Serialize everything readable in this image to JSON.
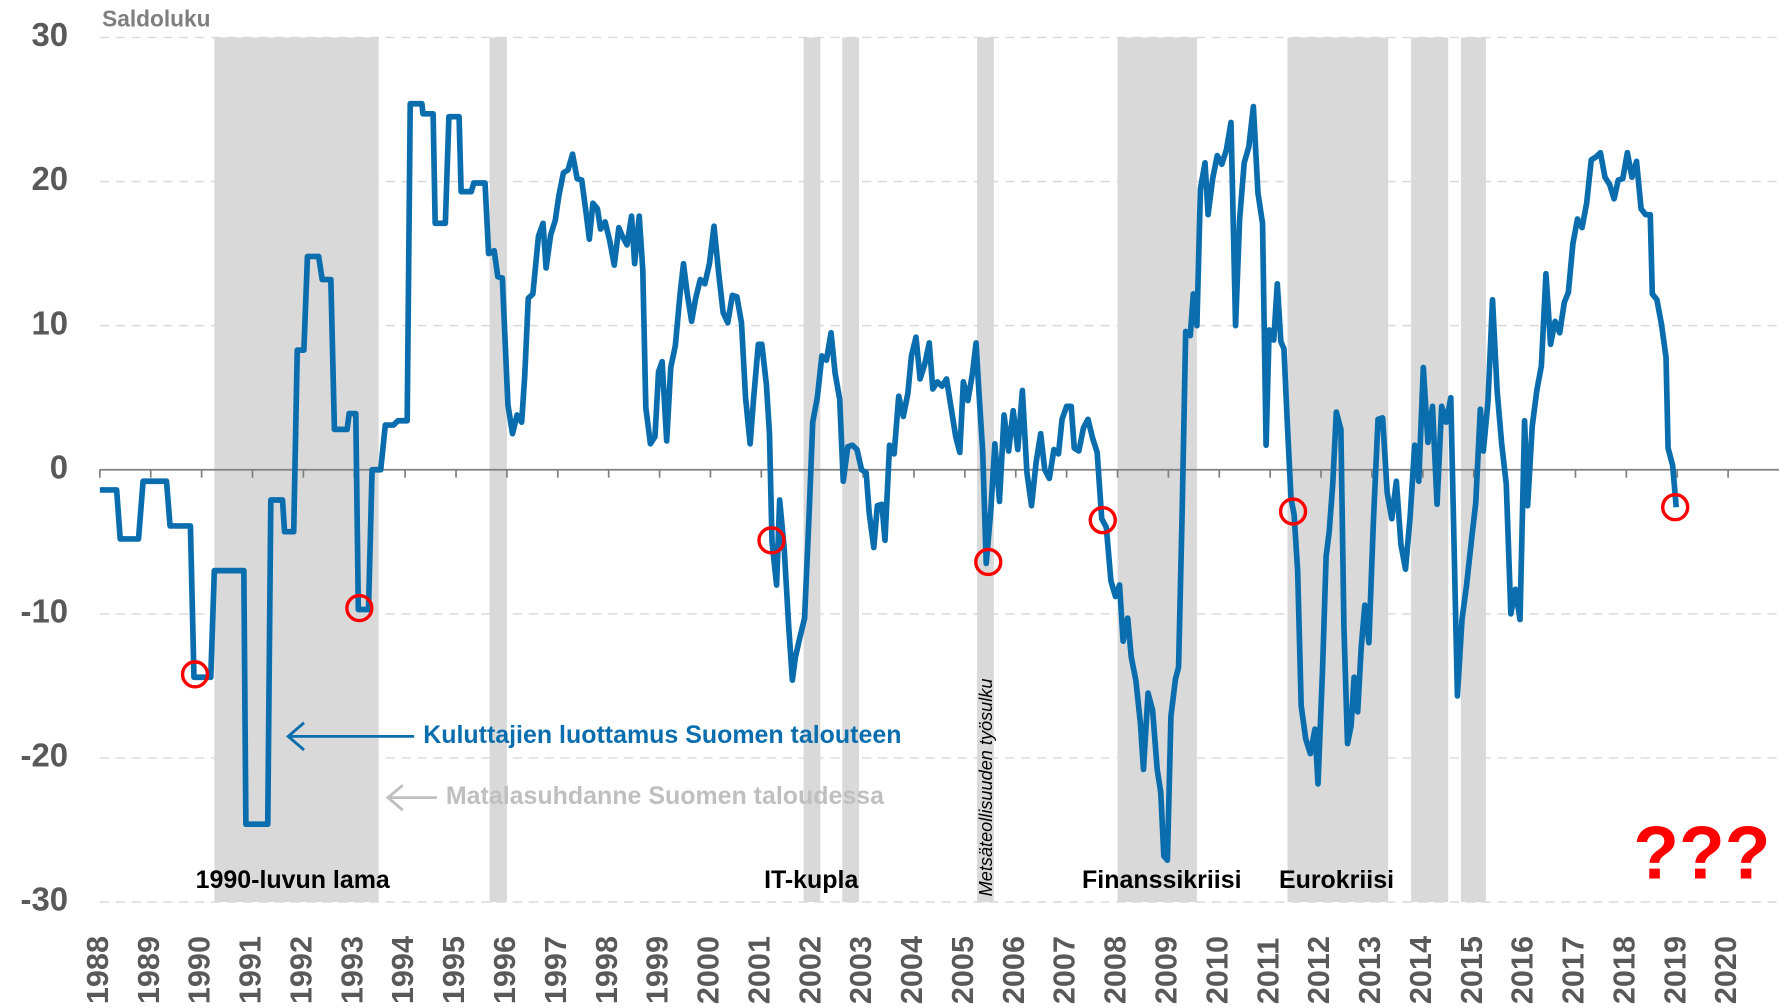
{
  "chart_data": {
    "type": "line",
    "y_label": "Saldoluku",
    "xlim": [
      1988,
      2021
    ],
    "ylim": [
      -30,
      30
    ],
    "xticks": [
      1988,
      1989,
      1990,
      1991,
      1992,
      1993,
      1994,
      1995,
      1996,
      1997,
      1998,
      1999,
      2000,
      2001,
      2002,
      2003,
      2004,
      2005,
      2006,
      2007,
      2008,
      2009,
      2010,
      2011,
      2012,
      2013,
      2014,
      2015,
      2016,
      2017,
      2018,
      2019,
      2020
    ],
    "yticks": [
      -30,
      -20,
      -10,
      0,
      10,
      20,
      30
    ],
    "grid": true,
    "x": [
      1988.0,
      1988.33,
      1988.4,
      1988.76,
      1988.85,
      1989.31,
      1989.38,
      1989.78,
      1989.85,
      1990.18,
      1990.25,
      1990.83,
      1990.87,
      1991.3,
      1991.36,
      1991.59,
      1991.63,
      1991.81,
      1991.88,
      1992.01,
      1992.08,
      1992.3,
      1992.37,
      1992.54,
      1992.61,
      1992.86,
      1992.9,
      1993.03,
      1993.08,
      1993.28,
      1993.35,
      1993.52,
      1993.61,
      1993.77,
      1993.86,
      1994.04,
      1994.1,
      1994.33,
      1994.35,
      1994.55,
      1994.59,
      1994.79,
      1994.86,
      1995.06,
      1995.1,
      1995.3,
      1995.35,
      1995.57,
      1995.64,
      1995.75,
      1995.82,
      1995.91,
      1996.02,
      1996.11,
      1996.2,
      1996.29,
      1996.35,
      1996.42,
      1996.51,
      1996.62,
      1996.71,
      1996.77,
      1996.86,
      1996.95,
      1997.02,
      1997.11,
      1997.2,
      1997.29,
      1997.38,
      1997.47,
      1997.55,
      1997.62,
      1997.69,
      1997.78,
      1997.84,
      1997.93,
      1998.02,
      1998.11,
      1998.2,
      1998.27,
      1998.36,
      1998.45,
      1998.51,
      1998.6,
      1998.67,
      1998.73,
      1998.82,
      1998.91,
      1998.98,
      1999.05,
      1999.14,
      1999.22,
      1999.31,
      1999.4,
      1999.47,
      1999.54,
      1999.63,
      1999.71,
      1999.8,
      1999.89,
      1999.98,
      2000.07,
      2000.16,
      2000.25,
      2000.34,
      2000.43,
      2000.52,
      2000.61,
      2000.69,
      2000.78,
      2000.85,
      2000.94,
      2001.01,
      2001.1,
      2001.16,
      2001.21,
      2001.3,
      2001.36,
      2001.45,
      2001.54,
      2001.61,
      2001.67,
      2001.76,
      2001.85,
      2001.94,
      2002.01,
      2002.1,
      2002.19,
      2002.28,
      2002.37,
      2002.45,
      2002.54,
      2002.61,
      2002.7,
      2002.79,
      2002.88,
      2002.97,
      2003.06,
      2003.12,
      2003.21,
      2003.28,
      2003.37,
      2003.43,
      2003.52,
      2003.61,
      2003.7,
      2003.79,
      2003.88,
      2003.95,
      2004.04,
      2004.12,
      2004.21,
      2004.3,
      2004.37,
      2004.46,
      2004.55,
      2004.64,
      2004.73,
      2004.82,
      2004.9,
      2004.97,
      2005.06,
      2005.15,
      2005.22,
      2005.28,
      2005.35,
      2005.42,
      2005.51,
      2005.59,
      2005.68,
      2005.77,
      2005.86,
      2005.95,
      2006.04,
      2006.13,
      2006.22,
      2006.31,
      2006.4,
      2006.49,
      2006.57,
      2006.66,
      2006.75,
      2006.84,
      2006.91,
      2007.0,
      2007.09,
      2007.15,
      2007.24,
      2007.33,
      2007.42,
      2007.51,
      2007.6,
      2007.69,
      2007.78,
      2007.87,
      2007.96,
      2008.04,
      2008.11,
      2008.2,
      2008.27,
      2008.36,
      2008.45,
      2008.51,
      2008.6,
      2008.69,
      2008.78,
      2008.85,
      2008.91,
      2008.98,
      2009.05,
      2009.14,
      2009.2,
      2009.27,
      2009.34,
      2009.43,
      2009.49,
      2009.56,
      2009.63,
      2009.72,
      2009.78,
      2009.87,
      2009.96,
      2010.05,
      2010.14,
      2010.23,
      2010.32,
      2010.4,
      2010.49,
      2010.58,
      2010.67,
      2010.76,
      2010.85,
      2010.92,
      2010.98,
      2011.07,
      2011.14,
      2011.21,
      2011.27,
      2011.34,
      2011.41,
      2011.47,
      2011.54,
      2011.61,
      2011.7,
      2011.79,
      2011.88,
      2011.94,
      2012.03,
      2012.1,
      2012.16,
      2012.23,
      2012.3,
      2012.39,
      2012.45,
      2012.52,
      2012.59,
      2012.65,
      2012.72,
      2012.79,
      2012.86,
      2012.94,
      2013.03,
      2013.12,
      2013.21,
      2013.3,
      2013.39,
      2013.48,
      2013.57,
      2013.66,
      2013.75,
      2013.84,
      2013.92,
      2014.01,
      2014.1,
      2014.19,
      2014.28,
      2014.37,
      2014.46,
      2014.55,
      2014.61,
      2014.68,
      2014.77,
      2014.86,
      2014.95,
      2015.04,
      2015.13,
      2015.19,
      2015.28,
      2015.37,
      2015.46,
      2015.55,
      2015.64,
      2015.73,
      2015.82,
      2015.91,
      2016.0,
      2016.06,
      2016.15,
      2016.24,
      2016.33,
      2016.42,
      2016.51,
      2016.6,
      2016.69,
      2016.78,
      2016.86,
      2016.95,
      2017.04,
      2017.13,
      2017.22,
      2017.31,
      2017.4,
      2017.49,
      2017.58,
      2017.67,
      2017.76,
      2017.84,
      2017.93,
      2018.02,
      2018.11,
      2018.2,
      2018.29,
      2018.38,
      2018.47,
      2018.51,
      2018.6,
      2018.69,
      2018.78,
      2018.82,
      2018.91,
      2018.98
    ],
    "series": [
      {
        "name": "Kuluttajien luottamus Suomen talouteen",
        "color": "#0a6eae",
        "values": [
          -1.4,
          -1.4,
          -4.8,
          -4.8,
          -0.8,
          -0.8,
          -3.9,
          -3.9,
          -14.4,
          -14.4,
          -7,
          -7,
          -24.6,
          -24.6,
          -2.1,
          -2.1,
          -4.3,
          -4.3,
          8.3,
          8.3,
          14.8,
          14.8,
          13.2,
          13.2,
          2.8,
          2.8,
          3.9,
          3.9,
          -9.7,
          -9.7,
          0,
          0,
          3.1,
          3.1,
          3.4,
          3.4,
          25.4,
          25.4,
          24.7,
          24.7,
          17.1,
          17.1,
          24.5,
          24.5,
          19.3,
          19.3,
          19.9,
          19.9,
          15,
          15.2,
          13.4,
          13.3,
          4.5,
          2.5,
          3.8,
          3.3,
          6.5,
          11.9,
          12.2,
          16.2,
          17.1,
          14,
          16.3,
          17.3,
          19,
          20.6,
          20.8,
          21.9,
          20.2,
          20.1,
          18,
          16,
          18.5,
          18.1,
          16.7,
          17.2,
          15.9,
          14.2,
          16.8,
          16.2,
          15.6,
          17.6,
          14.3,
          17.6,
          13.9,
          4.3,
          1.8,
          2.3,
          6.8,
          7.5,
          2,
          7.1,
          8.6,
          12.1,
          14.3,
          12.3,
          10.3,
          11.9,
          13.2,
          12.9,
          14.3,
          16.9,
          13.7,
          10.9,
          10.2,
          12.1,
          12,
          10.2,
          5,
          1.8,
          5,
          8.7,
          8.7,
          5.9,
          2.5,
          -5,
          -8,
          -2.1,
          -5.5,
          -11,
          -14.6,
          -13,
          -11.6,
          -10.3,
          -3,
          3.3,
          5,
          7.9,
          7.6,
          9.5,
          6.7,
          4.9,
          -0.8,
          1.6,
          1.7,
          1.4,
          0,
          -0.2,
          -3,
          -5.4,
          -2.5,
          -2.4,
          -4.9,
          1.7,
          1.1,
          5.1,
          3.7,
          5.3,
          7.9,
          9.2,
          6.3,
          7.3,
          8.8,
          5.6,
          6.1,
          5.8,
          6.3,
          4.3,
          2.3,
          1.2,
          6.1,
          4.8,
          6.7,
          8.8,
          5.2,
          1.3,
          -6.5,
          -2.8,
          1.8,
          -2.2,
          3.8,
          1.3,
          4.1,
          1.4,
          5.5,
          -0.2,
          -2.5,
          0.5,
          2.5,
          0,
          -0.6,
          1.4,
          1.1,
          3.5,
          4.4,
          4.4,
          1.5,
          1.3,
          2.9,
          3.5,
          2.2,
          1.2,
          -3.4,
          -4,
          -7.7,
          -8.8,
          -8,
          -11.9,
          -10.3,
          -13,
          -14.6,
          -17.6,
          -20.8,
          -15.5,
          -16.7,
          -20.8,
          -22.4,
          -26.8,
          -27.1,
          -17.1,
          -14.5,
          -13.7,
          -3,
          9.6,
          9.3,
          12.2,
          10,
          19.5,
          21.3,
          17.7,
          20.2,
          21.8,
          21.2,
          22.2,
          24.1,
          10,
          17.4,
          21.3,
          22.4,
          25.2,
          19.2,
          17.1,
          1.7,
          9.7,
          9,
          12.9,
          8.9,
          8.4,
          3,
          -2,
          -3.1,
          -7,
          -16.4,
          -18.7,
          -19.7,
          -18,
          -21.8,
          -13.8,
          -6,
          -4.3,
          -1,
          4,
          2.8,
          -11,
          -19,
          -17.8,
          -14.4,
          -16.8,
          -12.3,
          -9.4,
          -12,
          -3.5,
          3.5,
          3.6,
          -1.6,
          -3.4,
          -0.8,
          -5.2,
          -6.9,
          -3.3,
          1.7,
          -0.8,
          7.1,
          1.9,
          4.4,
          -2.4,
          4.4,
          3.3,
          5,
          -4.6,
          -15.7,
          -10.4,
          -8,
          -5.1,
          -2.3,
          4.2,
          1.3,
          4.7,
          11.8,
          5.5,
          1.8,
          -1,
          -10,
          -8.3,
          -10.4,
          3.4,
          -2.5,
          3,
          5.5,
          7.2,
          13.6,
          8.7,
          10.3,
          9.5,
          11.6,
          12.3,
          15.7,
          17.4,
          16.8,
          18.5,
          21.5,
          21.7,
          22,
          20.3,
          19.8,
          18.8,
          20.1,
          20.2,
          22,
          20.3,
          21.4,
          18.1,
          17.7,
          17.7,
          12.2,
          11.8,
          10.1,
          7.8,
          1.5,
          0.3,
          -2.6
        ]
      }
    ],
    "bands": {
      "name": "Matalasuhdanne Suomen taloudessa",
      "color": "#d9d9d9",
      "ranges": [
        [
          1990.25,
          1993.48
        ],
        [
          1995.66,
          1996.0
        ],
        [
          2001.83,
          2002.16
        ],
        [
          2002.59,
          2002.92
        ],
        [
          2005.24,
          2005.57
        ],
        [
          2008.0,
          2009.56
        ],
        [
          2011.34,
          2013.32
        ],
        [
          2013.77,
          2014.5
        ],
        [
          2014.75,
          2015.24
        ]
      ]
    },
    "highlights": {
      "color": "#ff0000",
      "x": [
        1989.87,
        1993.1,
        2001.2,
        2005.46,
        2007.71,
        2011.45,
        2018.96
      ],
      "values": [
        -14.2,
        -9.6,
        -4.9,
        -6.4,
        -3.5,
        -2.9,
        -2.6
      ]
    },
    "annotations": [
      "1990-luvun lama",
      "IT-kupla",
      "Metsäteollisuuden työsulku",
      "Finanssikriisi",
      "Eurokriisi",
      "???"
    ]
  }
}
